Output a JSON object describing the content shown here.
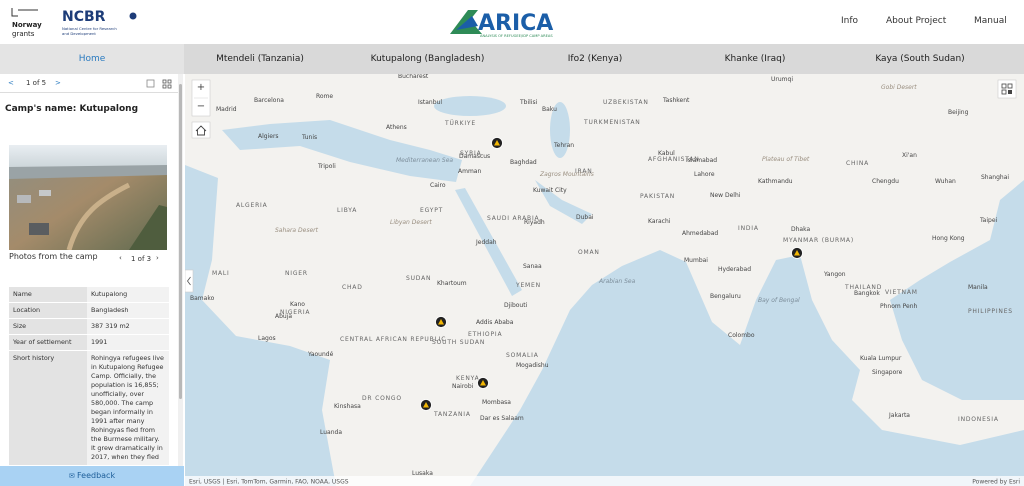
{
  "header": {
    "norway_logo": "Norway",
    "norway_logo_sub": "grants",
    "ncbr_logo": "NCBR",
    "ncbr_subtitle": [
      "National Centre for Research",
      "and Development"
    ],
    "title": "ARICA",
    "subtitle": "ANALYSIS OF REFUGEE/IDP CAMP AREAS",
    "nav": [
      "Info",
      "About Project",
      "Manual"
    ]
  },
  "tabs": [
    "Home",
    "Mtendeli (Tanzania)",
    "Kutupalong (Bangladesh)",
    "Ifo2 (Kenya)",
    "Khanke (Iraq)",
    "Kaya (South Sudan)"
  ],
  "sidebar": {
    "pager": {
      "prev": "<",
      "label": "1 of 5",
      "next": ">"
    },
    "camp_name": "Camp's name: Kutupalong",
    "photos_caption": "Photos from the camp",
    "photo_pager": {
      "prev": "‹",
      "label": "1 of 3",
      "next": "›"
    },
    "table": {
      "rows": [
        [
          "Name",
          "Kutupalong"
        ],
        [
          "Location",
          "Bangladesh"
        ],
        [
          "Size",
          "387 319 m2"
        ],
        [
          "Year of settlement",
          "1991"
        ],
        [
          "Short history",
          "Rohingya refugees live in Kutupalong Refugee Camp. Officially, the population is 16,855; unofficially, over 580,000. The camp began informally in 1991 after many Rohingyas fled from the Burmese military. It grew dramatically in 2017, when they fled"
        ]
      ]
    },
    "feedback": "Feedback"
  },
  "map": {
    "controls": [
      "+",
      "−"
    ],
    "labels": [
      "Bucharest",
      "Istanbul",
      "Madrid",
      "Barcelona",
      "Rome",
      "Algiers",
      "Tunis",
      "Athens",
      "TÜRKIYE",
      "Baku",
      "Tehran",
      "Tripoli",
      "Cairo",
      "Damascus",
      "Baghdad",
      "Amman",
      "Kuwait City",
      "Riyadh",
      "Jeddah",
      "ALGERIA",
      "LIBYA",
      "EGYPT",
      "SAUDI ARABIA",
      "Dubai",
      "OMAN",
      "IRAN",
      "AFGHANISTAN",
      "PAKISTAN",
      "Kabul",
      "Lahore",
      "New Delhi",
      "Karachi",
      "Ahmedabad",
      "Mumbai",
      "Hyderabad",
      "Bengaluru",
      "Colombo",
      "INDIA",
      "Dhaka",
      "MYANMAR (BURMA)",
      "Yangon",
      "Bangkok",
      "THAILAND",
      "VIETNAM",
      "Phnom Penh",
      "Manila",
      "PHILIPPINES",
      "Hong Kong",
      "Taipei",
      "Shanghai",
      "Wuhan",
      "Chengdu",
      "CHINA",
      "Xi'an",
      "Beijing",
      "Tashkent",
      "UZBEKISTAN",
      "TURKMENISTAN",
      "Kuala Lumpur",
      "Singapore",
      "Jakarta",
      "INDONESIA",
      "Khartoum",
      "SUDAN",
      "CHAD",
      "NIGER",
      "MALI",
      "Bamako",
      "Abuja",
      "Lagos",
      "Kano",
      "NIGERIA",
      "Addis Ababa",
      "ETHIOPIA",
      "Djibouti",
      "YEMEN",
      "SOMALIA",
      "Mogadishu",
      "KENYA",
      "Nairobi",
      "Mombasa",
      "Dar es Salaam",
      "TANZANIA",
      "Kinshasa",
      "Luanda",
      "DR CONGO",
      "CENTRAL AFRICAN REPUBLIC",
      "SOUTH SUDAN",
      "Yaoundé",
      "Lusaka",
      "Arabian Sea",
      "Bay of Bengal",
      "Mediterranean Sea",
      "Sahara Desert",
      "Libyan Desert",
      "Plateau of Tibet",
      "Zagros Mountains",
      "Urumqi",
      "Gobi Desert",
      "SYRIA",
      "Sanaa",
      "Kathmandu",
      "Islamabad",
      "Tbilisi"
    ],
    "attribution": "Esri, USGS | Esri, TomTom, Garmin, FAO, NOAA, USGS",
    "powered_by": "Powered by Esri"
  }
}
